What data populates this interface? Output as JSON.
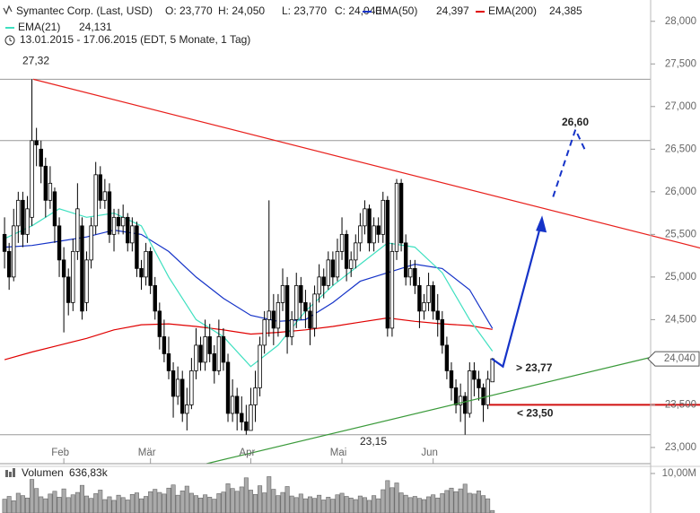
{
  "chart_data": {
    "type": "candlestick",
    "title": "Symantec Corp. (Last, USD)",
    "ohlc_labels": [
      "O: 23,770",
      "H: 24,050",
      "L: 23,770",
      "C: 24,040"
    ],
    "date_range": "13.01.2015 - 17.06.2015 (EDT, 5 Monate, 1 Tag)",
    "up_color": "#ffffff",
    "down_color": "#000000",
    "candles": [
      [
        25.5,
        25.7,
        25.1,
        25.3
      ],
      [
        25.3,
        25.4,
        24.85,
        25.0
      ],
      [
        25.0,
        25.8,
        24.95,
        25.6
      ],
      [
        25.6,
        26.0,
        25.4,
        25.9
      ],
      [
        25.9,
        26.0,
        25.35,
        25.5
      ],
      [
        25.5,
        25.95,
        25.4,
        25.8
      ],
      [
        25.7,
        27.32,
        25.6,
        26.6
      ],
      [
        26.6,
        26.75,
        26.3,
        26.55
      ],
      [
        26.5,
        26.6,
        26.1,
        26.3
      ],
      [
        26.3,
        26.4,
        25.7,
        25.9
      ],
      [
        25.9,
        26.3,
        25.8,
        26.1
      ],
      [
        26.0,
        26.05,
        25.4,
        25.6
      ],
      [
        25.6,
        25.7,
        25.0,
        25.2
      ],
      [
        25.2,
        25.35,
        24.35,
        25.0
      ],
      [
        25.0,
        25.1,
        24.55,
        24.7
      ],
      [
        24.7,
        25.45,
        24.6,
        25.3
      ],
      [
        25.3,
        26.1,
        25.2,
        25.8
      ],
      [
        25.6,
        25.7,
        24.5,
        24.6
      ],
      [
        24.7,
        25.3,
        24.6,
        25.2
      ],
      [
        25.2,
        25.7,
        25.1,
        25.6
      ],
      [
        25.6,
        26.35,
        25.5,
        26.2
      ],
      [
        26.2,
        26.3,
        25.8,
        25.9
      ],
      [
        25.9,
        26.15,
        25.8,
        26.0
      ],
      [
        26.0,
        26.1,
        25.4,
        25.5
      ],
      [
        25.5,
        25.8,
        25.3,
        25.7
      ],
      [
        25.7,
        25.8,
        25.5,
        25.6
      ],
      [
        25.6,
        25.85,
        25.5,
        25.7
      ],
      [
        25.7,
        25.75,
        25.3,
        25.4
      ],
      [
        25.4,
        25.7,
        25.3,
        25.6
      ],
      [
        25.6,
        25.65,
        25.0,
        25.1
      ],
      [
        25.1,
        25.2,
        24.85,
        25.0
      ],
      [
        25.0,
        25.4,
        24.9,
        25.3
      ],
      [
        25.3,
        25.35,
        24.8,
        24.9
      ],
      [
        24.9,
        25.0,
        24.5,
        24.6
      ],
      [
        24.6,
        24.7,
        24.15,
        24.3
      ],
      [
        24.3,
        24.5,
        24.0,
        24.1
      ],
      [
        24.1,
        24.3,
        23.8,
        23.9
      ],
      [
        23.9,
        24.0,
        23.35,
        23.6
      ],
      [
        23.6,
        23.95,
        23.5,
        23.8
      ],
      [
        23.8,
        23.9,
        23.3,
        23.4
      ],
      [
        23.4,
        23.7,
        23.2,
        23.5
      ],
      [
        23.5,
        24.05,
        23.45,
        23.9
      ],
      [
        23.9,
        24.4,
        23.8,
        24.2
      ],
      [
        24.2,
        24.3,
        23.9,
        24.0
      ],
      [
        24.0,
        24.5,
        23.9,
        24.3
      ],
      [
        24.3,
        24.45,
        24.0,
        24.1
      ],
      [
        24.1,
        24.2,
        23.75,
        23.9
      ],
      [
        23.9,
        24.5,
        23.85,
        24.3
      ],
      [
        24.3,
        24.4,
        23.9,
        24.0
      ],
      [
        24.0,
        24.1,
        23.3,
        23.4
      ],
      [
        23.4,
        23.8,
        23.3,
        23.6
      ],
      [
        23.6,
        23.7,
        23.2,
        23.4
      ],
      [
        23.4,
        23.6,
        23.2,
        23.3
      ],
      [
        23.3,
        23.5,
        23.15,
        23.2
      ],
      [
        23.2,
        23.7,
        23.2,
        23.5
      ],
      [
        23.5,
        23.9,
        23.3,
        23.7
      ],
      [
        23.7,
        24.3,
        23.6,
        24.2
      ],
      [
        24.2,
        24.6,
        24.1,
        24.5
      ],
      [
        24.5,
        25.9,
        24.3,
        24.6
      ],
      [
        24.6,
        24.8,
        24.2,
        24.4
      ],
      [
        24.4,
        24.8,
        24.3,
        24.7
      ],
      [
        24.7,
        25.1,
        24.6,
        24.9
      ],
      [
        24.9,
        25.0,
        24.1,
        24.3
      ],
      [
        24.3,
        24.6,
        24.2,
        24.5
      ],
      [
        24.5,
        25.05,
        24.4,
        24.9
      ],
      [
        24.9,
        25.0,
        24.5,
        24.7
      ],
      [
        24.7,
        24.85,
        24.4,
        24.6
      ],
      [
        24.6,
        24.7,
        24.2,
        24.4
      ],
      [
        24.4,
        24.9,
        24.3,
        24.8
      ],
      [
        24.8,
        25.15,
        24.7,
        25.0
      ],
      [
        25.0,
        25.1,
        24.75,
        24.9
      ],
      [
        24.9,
        25.3,
        24.85,
        25.2
      ],
      [
        25.2,
        25.3,
        24.9,
        25.0
      ],
      [
        25.0,
        25.45,
        24.95,
        25.3
      ],
      [
        25.3,
        25.7,
        25.2,
        25.5
      ],
      [
        25.5,
        25.55,
        24.95,
        25.1
      ],
      [
        25.1,
        25.3,
        25.0,
        25.2
      ],
      [
        25.2,
        25.5,
        25.1,
        25.4
      ],
      [
        25.4,
        25.75,
        25.3,
        25.6
      ],
      [
        25.6,
        25.9,
        25.5,
        25.8
      ],
      [
        25.8,
        25.85,
        25.3,
        25.4
      ],
      [
        25.4,
        25.7,
        25.3,
        25.6
      ],
      [
        25.6,
        25.7,
        25.4,
        25.5
      ],
      [
        25.5,
        26.0,
        25.4,
        25.9
      ],
      [
        25.9,
        25.95,
        24.3,
        24.4
      ],
      [
        24.4,
        25.4,
        24.3,
        25.3
      ],
      [
        25.3,
        26.15,
        25.2,
        26.1
      ],
      [
        26.1,
        26.15,
        25.3,
        25.4
      ],
      [
        25.4,
        25.5,
        24.9,
        25.0
      ],
      [
        25.0,
        25.2,
        24.9,
        25.1
      ],
      [
        25.1,
        25.2,
        24.8,
        24.9
      ],
      [
        24.9,
        25.0,
        24.4,
        24.6
      ],
      [
        24.6,
        24.8,
        24.5,
        24.7
      ],
      [
        24.7,
        25.05,
        24.6,
        24.9
      ],
      [
        24.9,
        24.95,
        24.5,
        24.6
      ],
      [
        24.6,
        24.8,
        24.3,
        24.5
      ],
      [
        24.5,
        24.6,
        24.1,
        24.2
      ],
      [
        24.2,
        24.3,
        23.8,
        23.9
      ],
      [
        23.9,
        24.0,
        23.55,
        23.7
      ],
      [
        23.7,
        23.8,
        23.4,
        23.5
      ],
      [
        23.5,
        23.75,
        23.3,
        23.6
      ],
      [
        23.6,
        23.65,
        23.15,
        23.4
      ],
      [
        23.4,
        24.0,
        23.35,
        23.9
      ],
      [
        23.9,
        24.0,
        23.6,
        23.8
      ],
      [
        23.8,
        23.9,
        23.55,
        23.7
      ],
      [
        23.7,
        23.75,
        23.3,
        23.5
      ],
      [
        23.5,
        23.9,
        23.45,
        23.8
      ],
      [
        23.77,
        24.05,
        23.77,
        24.04
      ]
    ],
    "series": [
      {
        "name": "EMA(50)",
        "color": "#1533c8",
        "last_label": "24,397",
        "x": [
          0,
          6,
          12,
          18,
          24,
          30,
          36,
          42,
          48,
          54,
          60,
          66,
          72,
          78,
          84,
          90,
          96,
          102,
          107
        ],
        "values": [
          25.35,
          25.37,
          25.42,
          25.47,
          25.55,
          25.5,
          25.3,
          25.0,
          24.75,
          24.55,
          24.48,
          24.5,
          24.7,
          24.95,
          25.05,
          25.15,
          25.1,
          24.85,
          24.397
        ]
      },
      {
        "name": "EMA(200)",
        "color": "#e00000",
        "last_label": "24,385",
        "x": [
          0,
          6,
          12,
          18,
          24,
          30,
          36,
          42,
          48,
          54,
          60,
          66,
          72,
          78,
          84,
          90,
          96,
          102,
          107
        ],
        "values": [
          24.03,
          24.12,
          24.2,
          24.28,
          24.38,
          24.44,
          24.45,
          24.42,
          24.38,
          24.33,
          24.35,
          24.38,
          24.42,
          24.47,
          24.52,
          24.48,
          24.45,
          24.43,
          24.385
        ]
      },
      {
        "name": "EMA(21)",
        "color": "#3fe0c0",
        "last_label": "24,131",
        "x": [
          0,
          6,
          12,
          18,
          24,
          30,
          36,
          42,
          48,
          54,
          60,
          66,
          72,
          78,
          84,
          90,
          96,
          102,
          107
        ],
        "values": [
          25.45,
          25.6,
          25.8,
          25.7,
          25.75,
          25.6,
          25.0,
          24.5,
          24.3,
          23.95,
          24.2,
          24.6,
          24.9,
          25.15,
          25.4,
          25.35,
          25.05,
          24.5,
          24.131
        ]
      }
    ],
    "ylim": [
      22.81,
      28.25
    ],
    "yticks": [
      {
        "value": 23,
        "label": "23,000"
      },
      {
        "value": 23.5,
        "label": "23,500"
      },
      {
        "value": 24,
        "label": "24,000"
      },
      {
        "value": 24.5,
        "label": "24,500"
      },
      {
        "value": 25,
        "label": "25,000"
      },
      {
        "value": 25.5,
        "label": "25,500"
      },
      {
        "value": 26,
        "label": "26,000"
      },
      {
        "value": 26.5,
        "label": "26,500"
      },
      {
        "value": 27,
        "label": "27,000"
      },
      {
        "value": 27.5,
        "label": "27,500"
      },
      {
        "value": 28,
        "label": "28,000"
      }
    ],
    "xlim": [
      -1,
      141.7
    ],
    "xticks": [
      {
        "value": 13,
        "label": "Feb"
      },
      {
        "value": 32,
        "label": "Mär"
      },
      {
        "value": 54,
        "label": "Apr"
      },
      {
        "value": 74,
        "label": "Mai"
      },
      {
        "value": 94,
        "label": "Jun"
      }
    ],
    "last_price": {
      "value": 24.04,
      "label": "24,040"
    },
    "levels": [
      {
        "value": 27.32,
        "label": "27,32"
      },
      {
        "value": 26.6,
        "label": "26,60"
      },
      {
        "value": 23.15,
        "label": "23,15"
      }
    ],
    "annotations": [
      {
        "value": 23.77,
        "label": "> 23,77"
      },
      {
        "value": 23.5,
        "label": "< 23,50"
      }
    ],
    "trendlines": [
      {
        "color": "#e8201c",
        "x": [
          6.3,
          152.6
        ],
        "values": [
          27.32,
          25.34
        ]
      },
      {
        "color": "#3a9a3a",
        "x": [
          44.3,
          142.7
        ],
        "values": [
          22.81,
          24.07
        ]
      }
    ],
    "projection": {
      "color": "#1533c8",
      "x": [
        106.9,
        109.3,
        117.9
      ],
      "values": [
        24.04,
        23.95,
        25.67
      ],
      "dashed_x": [
        120.3,
        125.2,
        127.4
      ],
      "dashed_values": [
        25.94,
        26.73,
        26.48
      ]
    },
    "volume": {
      "label": "Volumen",
      "last_label": "636,83k",
      "ylim": [
        0,
        11.8
      ],
      "ticks": [
        {
          "value": 10,
          "label": "10,00M"
        }
      ],
      "values": [
        3.5,
        4.2,
        3.1,
        5.0,
        4.4,
        3.8,
        8.5,
        6.2,
        4.1,
        3.6,
        4.8,
        5.5,
        4.0,
        6.1,
        3.9,
        4.6,
        5.2,
        7.0,
        4.3,
        3.7,
        4.9,
        5.8,
        3.4,
        4.1,
        3.2,
        4.5,
        3.9,
        3.3,
        4.7,
        5.1,
        3.6,
        4.2,
        5.4,
        6.0,
        5.2,
        4.8,
        6.3,
        7.1,
        4.5,
        5.6,
        6.8,
        5.0,
        4.4,
        3.8,
        4.6,
        4.0,
        3.5,
        4.9,
        5.3,
        7.4,
        6.2,
        5.5,
        6.6,
        8.9,
        5.8,
        4.7,
        6.9,
        5.1,
        9.2,
        6.0,
        4.4,
        5.2,
        6.7,
        4.3,
        3.9,
        4.8,
        3.6,
        4.1,
        3.7,
        4.5,
        3.3,
        4.0,
        3.5,
        4.6,
        5.0,
        4.2,
        3.8,
        3.4,
        4.3,
        3.9,
        3.2,
        4.4,
        3.6,
        5.9,
        8.2,
        6.4,
        7.6,
        5.1,
        4.5,
        3.9,
        4.2,
        3.7,
        3.4,
        4.1,
        4.6,
        3.8,
        4.9,
        5.7,
        6.3,
        5.4,
        6.1,
        7.3,
        5.0,
        4.8,
        5.6,
        4.4,
        3.6,
        0.63683
      ]
    }
  }
}
